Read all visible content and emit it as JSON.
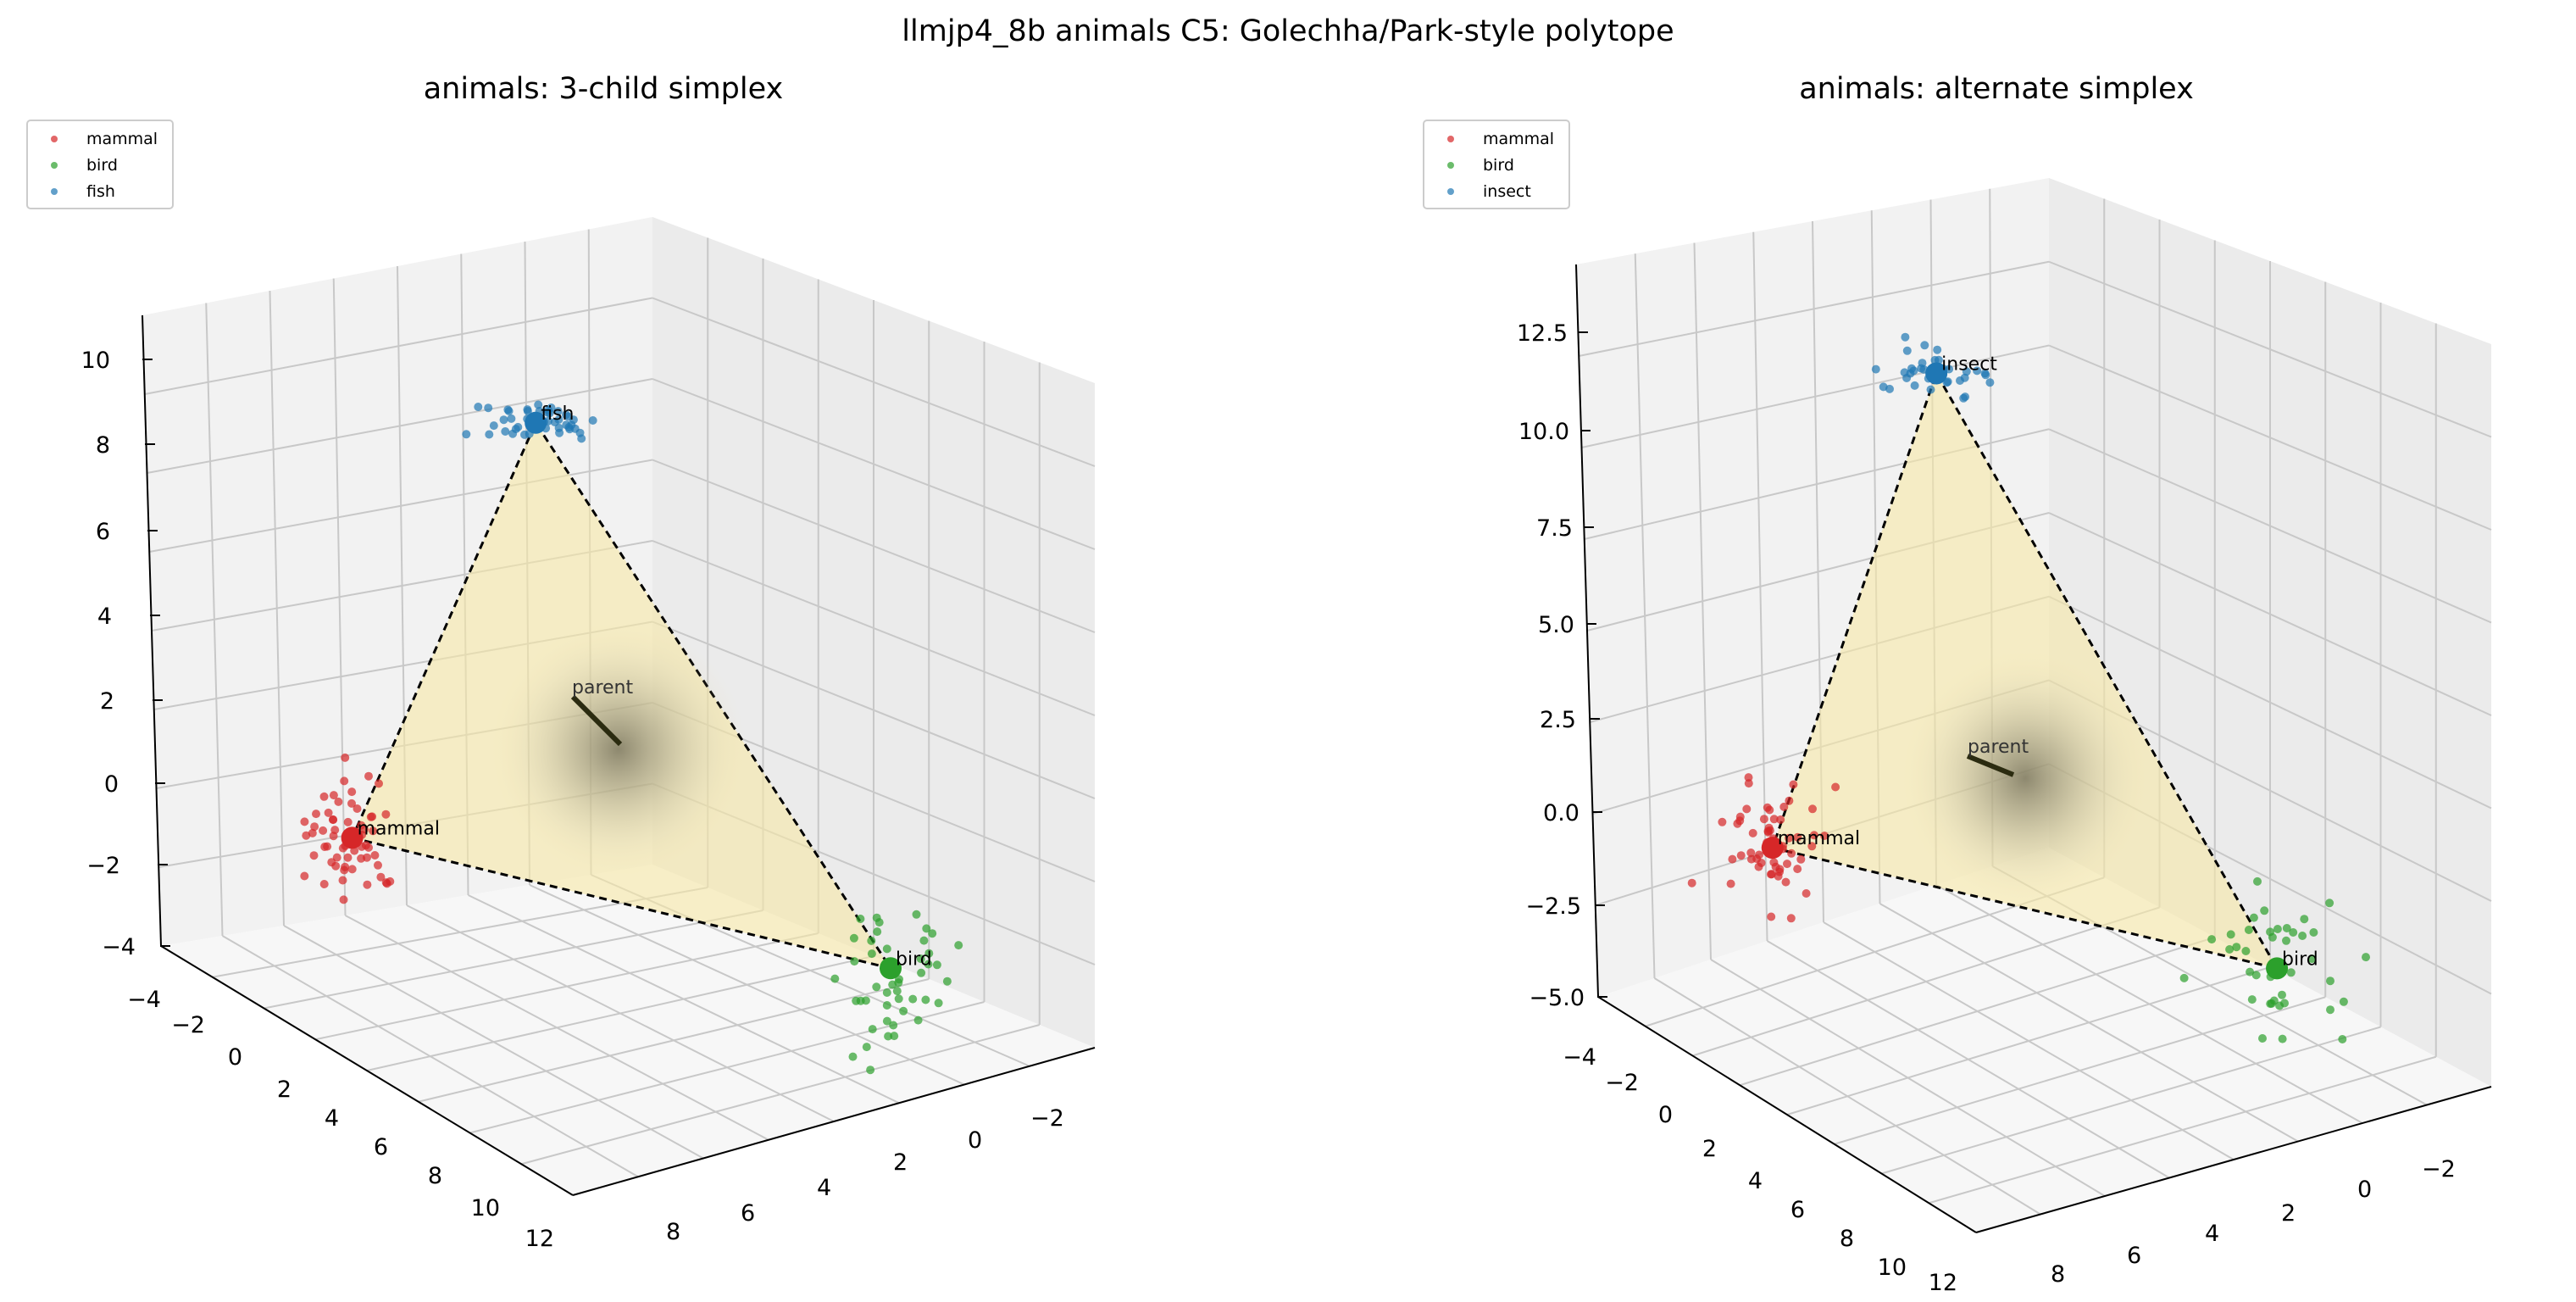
{
  "figure_title": "llmjp4_8b animals C5: Golechha/Park-style polytope",
  "colors": {
    "mammal": "#d62728",
    "bird": "#2ca02c",
    "fish": "#1f77b4",
    "insect": "#1f77b4",
    "fill": "#f7e7a6",
    "pane_left": "#f2f2f2",
    "pane_back": "#ebebeb",
    "pane_floor": "#f7f7f7",
    "grid": "#c8c8c8",
    "parent_arrow": "#2b2b10"
  },
  "chart_data": [
    {
      "type": "scatter3d",
      "title": "animals: 3-child simplex",
      "legend": [
        "mammal",
        "bird",
        "fish"
      ],
      "legend_position": "top-left",
      "grid": true,
      "z_ticks": [
        "10",
        "8",
        "6",
        "4",
        "2",
        "0",
        "−2",
        "−4"
      ],
      "x_ticks": [
        "−4",
        "−2",
        "0",
        "2",
        "4",
        "6",
        "8",
        "10",
        "12"
      ],
      "y_ticks": [
        "−2",
        "0",
        "2",
        "4",
        "6",
        "8"
      ],
      "vertices": [
        {
          "name": "mammal",
          "label": "mammal",
          "x": 0,
          "y": 0,
          "z": -0.8
        },
        {
          "name": "bird",
          "label": "bird",
          "x": 8,
          "y": 0,
          "z": -2.5
        },
        {
          "name": "fish",
          "label": "fish",
          "x": 3,
          "y": 0,
          "z": 9.4
        }
      ],
      "parent": {
        "label": "parent",
        "x": 3,
        "y": 3,
        "z": 2.0
      },
      "cluster_sizes": {
        "mammal": 60,
        "bird": 45,
        "fish": 50
      }
    },
    {
      "type": "scatter3d",
      "title": "animals: alternate simplex",
      "legend": [
        "mammal",
        "bird",
        "insect"
      ],
      "legend_position": "top-left",
      "grid": true,
      "z_ticks": [
        "12.5",
        "10.0",
        "7.5",
        "5.0",
        "2.5",
        "0.0",
        "−2.5",
        "−5.0"
      ],
      "x_ticks": [
        "−4",
        "−2",
        "0",
        "2",
        "4",
        "6",
        "8",
        "10",
        "12"
      ],
      "y_ticks": [
        "−2",
        "0",
        "2",
        "4",
        "6",
        "8"
      ],
      "vertices": [
        {
          "name": "mammal",
          "label": "mammal",
          "x": 0,
          "y": 0,
          "z": -0.8
        },
        {
          "name": "bird",
          "label": "bird",
          "x": 8,
          "y": 0,
          "z": -2.3
        },
        {
          "name": "insect",
          "label": "insect",
          "x": 3,
          "y": 0,
          "z": 12.2
        }
      ],
      "parent": {
        "label": "parent",
        "x": 3,
        "y": 3,
        "z": 1.3
      },
      "cluster_sizes": {
        "mammal": 60,
        "bird": 40,
        "insect": 35
      }
    }
  ]
}
